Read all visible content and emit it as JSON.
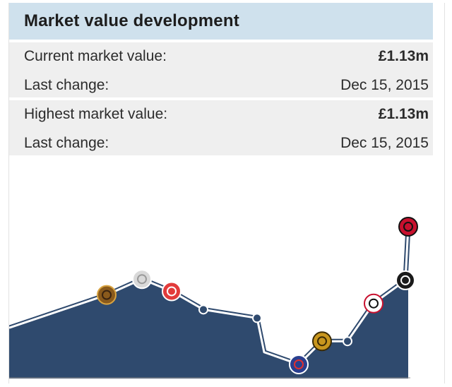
{
  "header": {
    "title": "Market value development"
  },
  "current": {
    "market_value_label": "Current market value:",
    "market_value": "£1.13m",
    "last_change_label": "Last change:",
    "last_change": "Dec 15, 2015"
  },
  "highest": {
    "market_value_label": "Highest market value:",
    "market_value": "£1.13m",
    "last_change_label": "Last change:",
    "last_change": "Dec 15, 2015"
  },
  "colors": {
    "header_bg": "#cfe1ed",
    "row_bg": "#efefef",
    "area_fill": "#2f4a6e",
    "line": "#ffffff",
    "marker": "#2f4a6e"
  },
  "chart_data": {
    "type": "area",
    "values": [
      0.3,
      0.57,
      0.7,
      0.6,
      0.45,
      0.38,
      0.1,
      0.0,
      0.19,
      0.19,
      0.5,
      0.69,
      1.13
    ],
    "markers": [
      {
        "kind": "club-crest-icon",
        "crest": "brown-gold"
      },
      {
        "kind": "club-crest-icon",
        "crest": "grey-white"
      },
      {
        "kind": "club-crest-icon",
        "crest": "red-white"
      },
      {
        "kind": "dot"
      },
      {
        "kind": "dot"
      },
      {
        "kind": "club-crest-icon",
        "crest": "blue-red"
      },
      {
        "kind": "club-crest-icon",
        "crest": "gold-black"
      },
      {
        "kind": "dot"
      },
      {
        "kind": "club-crest-icon",
        "crest": "red-black-white"
      },
      {
        "kind": "club-crest-icon",
        "crest": "black-white"
      },
      {
        "kind": "club-crest-icon",
        "crest": "red-black-stripes"
      }
    ]
  }
}
